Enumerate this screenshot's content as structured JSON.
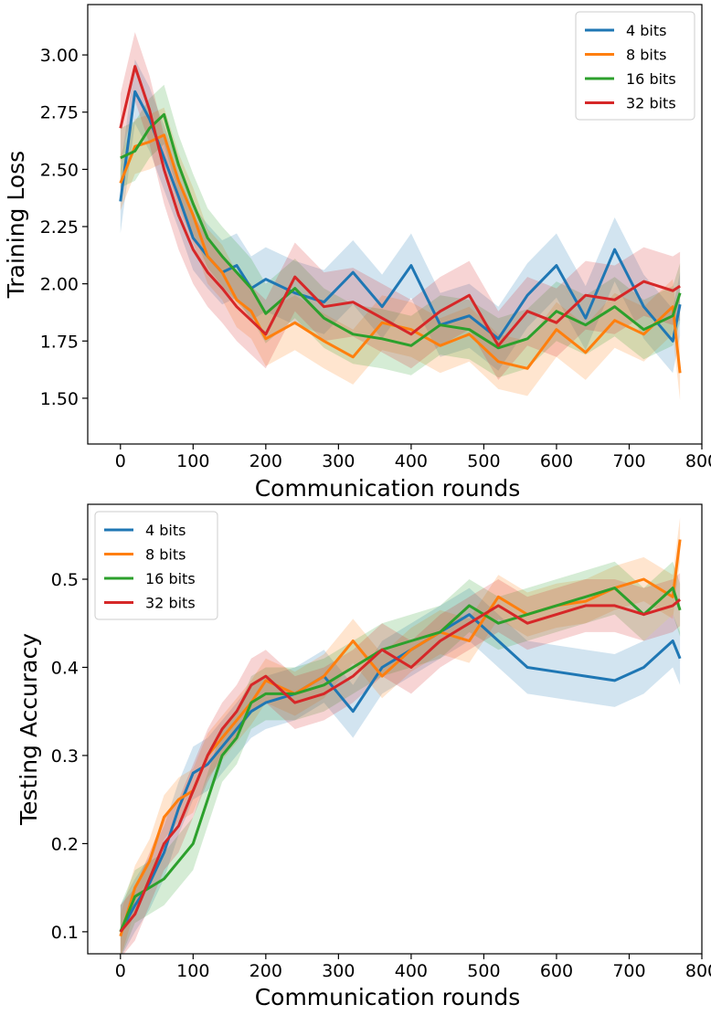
{
  "chart_data": [
    {
      "type": "line",
      "xlabel": "Communication rounds",
      "ylabel": "Training Loss",
      "xlim": [
        -45,
        800
      ],
      "ylim": [
        1.3,
        3.22
      ],
      "xticks": [
        0,
        100,
        200,
        300,
        400,
        500,
        600,
        700,
        800
      ],
      "yticks": [
        1.5,
        1.75,
        2.0,
        2.25,
        2.5,
        2.75,
        3.0
      ],
      "ytick_labels": [
        "1.50",
        "1.75",
        "2.00",
        "2.25",
        "2.50",
        "2.75",
        "3.00"
      ],
      "legend_position": "upper right",
      "x": [
        0,
        20,
        40,
        60,
        80,
        100,
        120,
        140,
        160,
        180,
        200,
        240,
        280,
        320,
        360,
        400,
        440,
        480,
        520,
        560,
        600,
        640,
        680,
        720,
        760,
        770
      ],
      "series": [
        {
          "name": "4 bits",
          "color": "#1f77b4",
          "band": 0.14,
          "values": [
            2.36,
            2.84,
            2.72,
            2.55,
            2.38,
            2.2,
            2.12,
            2.05,
            2.08,
            1.98,
            2.02,
            1.96,
            1.92,
            2.05,
            1.9,
            2.08,
            1.82,
            1.86,
            1.76,
            1.95,
            2.08,
            1.85,
            2.15,
            1.9,
            1.75,
            1.91
          ]
        },
        {
          "name": "8 bits",
          "color": "#ff7f0e",
          "band": 0.12,
          "values": [
            2.44,
            2.6,
            2.62,
            2.65,
            2.45,
            2.3,
            2.12,
            2.05,
            1.93,
            1.88,
            1.76,
            1.83,
            1.75,
            1.68,
            1.83,
            1.8,
            1.73,
            1.78,
            1.66,
            1.63,
            1.8,
            1.7,
            1.84,
            1.78,
            1.9,
            1.61
          ]
        },
        {
          "name": "16 bits",
          "color": "#2ca02c",
          "band": 0.13,
          "values": [
            2.55,
            2.58,
            2.68,
            2.74,
            2.52,
            2.35,
            2.2,
            2.12,
            2.05,
            1.98,
            1.87,
            1.98,
            1.85,
            1.78,
            1.76,
            1.73,
            1.82,
            1.8,
            1.72,
            1.76,
            1.88,
            1.82,
            1.9,
            1.8,
            1.86,
            1.96
          ]
        },
        {
          "name": "32 bits",
          "color": "#d62728",
          "band": 0.15,
          "values": [
            2.68,
            2.95,
            2.76,
            2.5,
            2.3,
            2.15,
            2.05,
            1.98,
            1.9,
            1.84,
            1.78,
            2.03,
            1.9,
            1.92,
            1.85,
            1.78,
            1.88,
            1.95,
            1.73,
            1.88,
            1.83,
            1.95,
            1.93,
            2.01,
            1.97,
            1.99
          ]
        }
      ]
    },
    {
      "type": "line",
      "xlabel": "Communication rounds",
      "ylabel": "Testing Accuracy",
      "xlim": [
        -45,
        800
      ],
      "ylim": [
        0.075,
        0.585
      ],
      "xticks": [
        0,
        100,
        200,
        300,
        400,
        500,
        600,
        700,
        800
      ],
      "yticks": [
        0.1,
        0.2,
        0.3,
        0.4,
        0.5
      ],
      "ytick_labels": [
        "0.1",
        "0.2",
        "0.3",
        "0.4",
        "0.5"
      ],
      "legend_position": "upper left",
      "x": [
        0,
        20,
        40,
        60,
        80,
        100,
        120,
        140,
        160,
        180,
        200,
        240,
        280,
        320,
        360,
        400,
        440,
        480,
        520,
        560,
        600,
        640,
        680,
        720,
        760,
        770
      ],
      "series": [
        {
          "name": "4 bits",
          "color": "#1f77b4",
          "band": 0.03,
          "values": [
            0.1,
            0.13,
            0.155,
            0.19,
            0.24,
            0.28,
            0.29,
            0.31,
            0.33,
            0.35,
            0.36,
            0.37,
            0.39,
            0.35,
            0.4,
            0.42,
            0.44,
            0.46,
            0.43,
            0.4,
            0.395,
            0.39,
            0.385,
            0.4,
            0.43,
            0.41
          ]
        },
        {
          "name": "8 bits",
          "color": "#ff7f0e",
          "band": 0.025,
          "values": [
            0.095,
            0.15,
            0.18,
            0.23,
            0.25,
            0.26,
            0.3,
            0.32,
            0.34,
            0.36,
            0.385,
            0.37,
            0.39,
            0.43,
            0.39,
            0.42,
            0.44,
            0.43,
            0.48,
            0.46,
            0.47,
            0.475,
            0.49,
            0.5,
            0.48,
            0.545
          ]
        },
        {
          "name": "16 bits",
          "color": "#2ca02c",
          "band": 0.03,
          "values": [
            0.1,
            0.14,
            0.15,
            0.16,
            0.18,
            0.2,
            0.25,
            0.3,
            0.32,
            0.36,
            0.37,
            0.37,
            0.38,
            0.4,
            0.42,
            0.43,
            0.44,
            0.47,
            0.45,
            0.46,
            0.47,
            0.48,
            0.49,
            0.46,
            0.49,
            0.465
          ]
        },
        {
          "name": "32 bits",
          "color": "#d62728",
          "band": 0.03,
          "values": [
            0.1,
            0.12,
            0.16,
            0.2,
            0.22,
            0.26,
            0.3,
            0.33,
            0.35,
            0.38,
            0.39,
            0.36,
            0.37,
            0.39,
            0.42,
            0.4,
            0.43,
            0.45,
            0.47,
            0.45,
            0.46,
            0.47,
            0.47,
            0.46,
            0.47,
            0.477
          ]
        }
      ]
    }
  ]
}
